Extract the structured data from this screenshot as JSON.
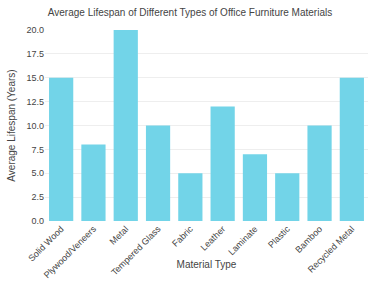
{
  "chart_data": {
    "type": "bar",
    "title": "Average Lifespan of Different Types of Office Furniture Materials",
    "xlabel": "Material Type",
    "ylabel": "Average Lifespan (Years)",
    "categories": [
      "Solid Wood",
      "Plywood/Veneers",
      "Metal",
      "Tempered Glass",
      "Fabric",
      "Leather",
      "Laminate",
      "Plastic",
      "Bamboo",
      "Recycled Metal"
    ],
    "values": [
      15,
      8,
      20,
      10,
      5,
      12,
      7,
      5,
      10,
      15
    ],
    "color": "#72d4e8",
    "ylim": [
      0,
      20
    ],
    "yticks": [
      {
        "value": 0,
        "label": "0.0"
      },
      2.5,
      {
        "value": 5,
        "label": "5.0"
      },
      7.5,
      {
        "value": 10,
        "label": "10.0"
      },
      12.5,
      {
        "value": 15,
        "label": "15.0"
      },
      17.5,
      {
        "value": 20,
        "label": "20.0"
      }
    ],
    "grid": true
  }
}
